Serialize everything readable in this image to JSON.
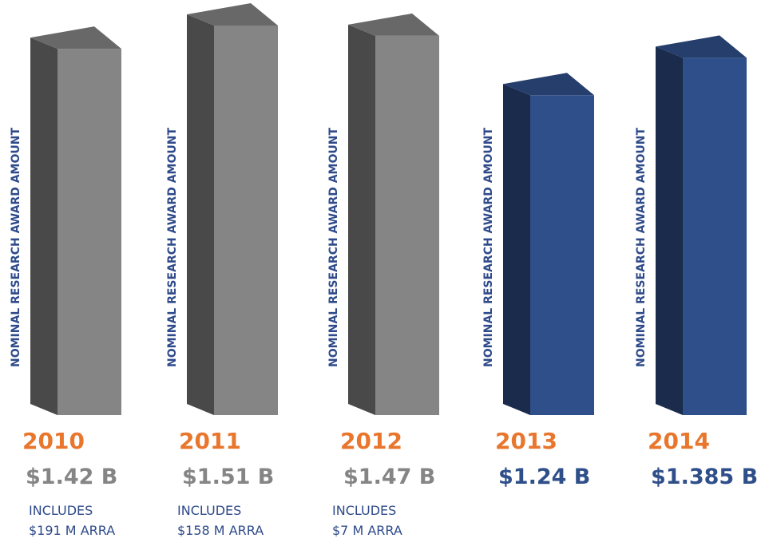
{
  "chart_data": {
    "type": "bar",
    "y_label": "NOMINAL RESEARCH AWARD AMOUNT",
    "categories": [
      "2010",
      "2011",
      "2012",
      "2013",
      "2014"
    ],
    "values": [
      1.42,
      1.51,
      1.47,
      1.24,
      1.385
    ],
    "value_labels": [
      "$1.42 B",
      "$1.51 B",
      "$1.47 B",
      "$1.24 B",
      "$1.385 B"
    ],
    "colors": [
      "#858585",
      "#858585",
      "#858585",
      "#2f4f8a",
      "#2f4f8a"
    ],
    "notes": [
      [
        "INCLUDES",
        "$191 M ARRA"
      ],
      [
        "INCLUDES",
        "$158 M ARRA"
      ],
      [
        "INCLUDES",
        "$7 M ARRA"
      ],
      null,
      null
    ]
  }
}
